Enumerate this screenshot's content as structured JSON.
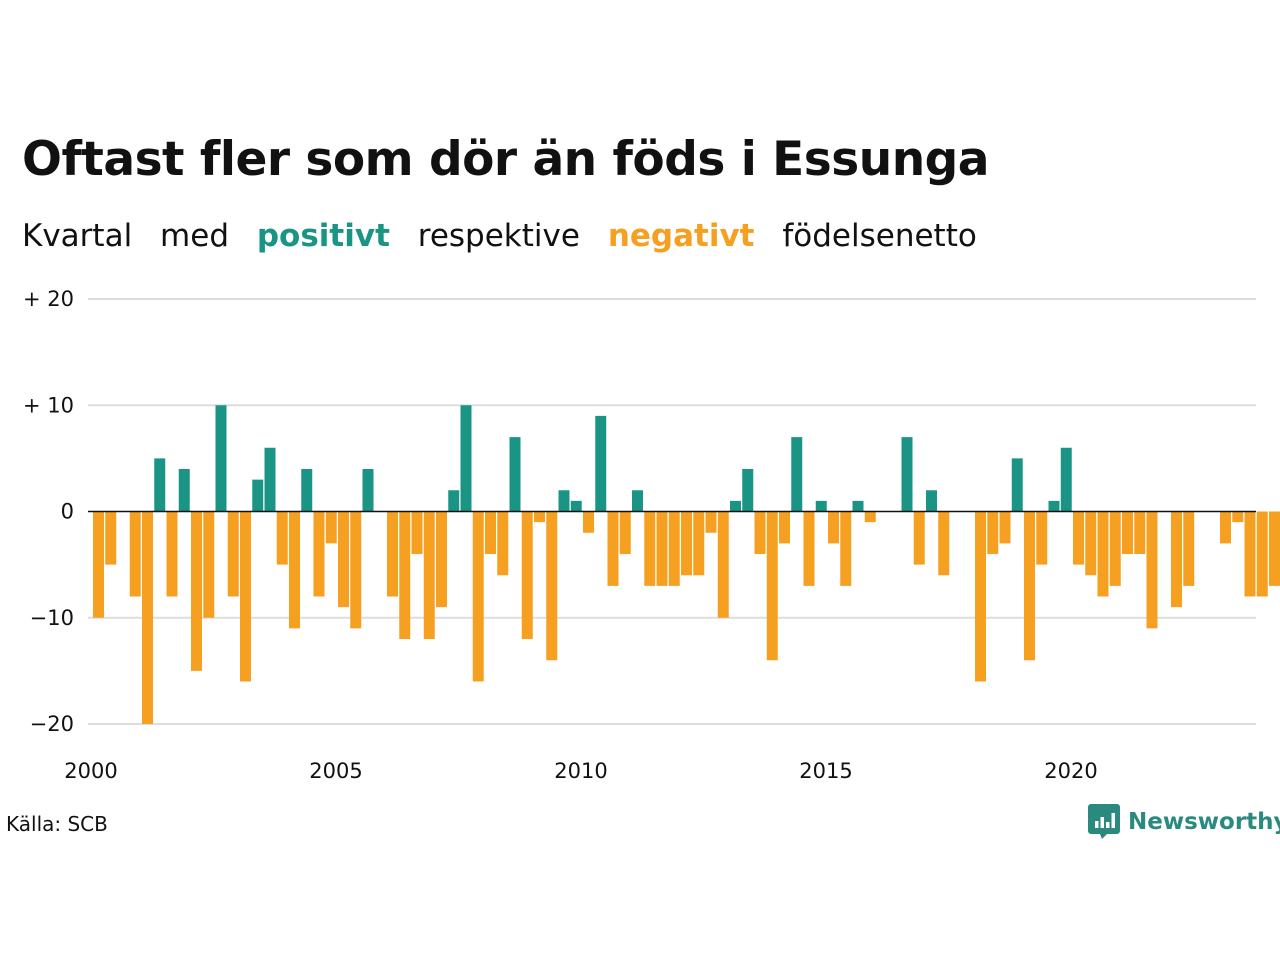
{
  "title": "Oftast fler som dör än föds i Essunga",
  "subtitle": {
    "p1": "Kvartal",
    "p2": "med",
    "positive": "positivt",
    "p3": "respektive",
    "negative": "negativt",
    "p4": "födelsenetto"
  },
  "source": "Källa: SCB",
  "brand": {
    "name": "Newsworthy",
    "icon": "newsworthy-logo-icon"
  },
  "colors": {
    "positive": "#1a9585",
    "negative": "#f5a020",
    "brand": "#2b8a80",
    "grid": "#dddddd"
  },
  "chart_data": {
    "type": "bar",
    "title": "Oftast fler som dör än föds i Essunga",
    "subtitle": "Kvartal med positivt respektive negativt födelsenetto",
    "xlabel": "",
    "ylabel": "",
    "start": "2000 Q1",
    "frequency": "quarterly",
    "ylim": [
      -20,
      20
    ],
    "y_ticks": [
      {
        "value": 20,
        "label": "+ 20"
      },
      {
        "value": 10,
        "label": "+ 10"
      },
      {
        "value": 0,
        "label": "0"
      },
      {
        "value": -10,
        "label": "−10"
      },
      {
        "value": -20,
        "label": "−20"
      }
    ],
    "x_ticks": [
      "2000",
      "2005",
      "2010",
      "2015",
      "2020"
    ],
    "grid": true,
    "values": [
      -10,
      -5,
      0,
      -8,
      -20,
      5,
      -8,
      4,
      -15,
      -10,
      10,
      -8,
      -16,
      3,
      6,
      -5,
      -11,
      4,
      -8,
      -3,
      -9,
      -11,
      4,
      0,
      -8,
      -12,
      -4,
      -12,
      -9,
      2,
      10,
      -16,
      -4,
      -6,
      7,
      -12,
      -1,
      -14,
      2,
      1,
      -2,
      9,
      -7,
      -4,
      2,
      -7,
      -7,
      -7,
      -6,
      -6,
      -2,
      -10,
      1,
      4,
      -4,
      -14,
      -3,
      7,
      -7,
      1,
      -3,
      -7,
      1,
      -1,
      0,
      0,
      7,
      -5,
      2,
      -6,
      0,
      0,
      -16,
      -4,
      -3,
      5,
      -14,
      -5,
      1,
      6,
      -5,
      -6,
      -8,
      -7,
      -4,
      -4,
      -11,
      0,
      -9,
      -7,
      0,
      0,
      -3,
      -1,
      -8,
      -8,
      -7
    ]
  }
}
